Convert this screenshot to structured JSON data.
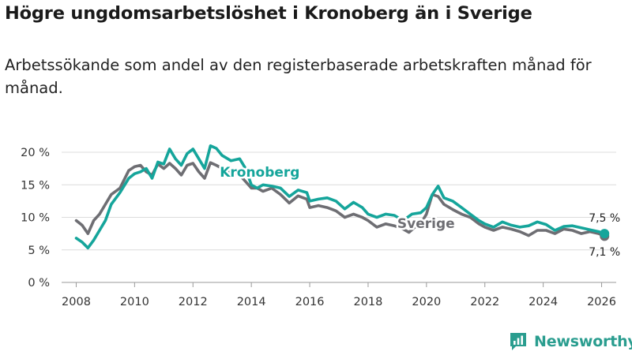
{
  "header": {
    "title": "Högre ungdomsarbetslöshet i Kronoberg än i Sverige",
    "subtitle": "Arbetssökande som andel av den registerbaserade arbetskraften månad för månad."
  },
  "brand": {
    "name": "Newsworthy",
    "icon": "newsworthy-logo-icon",
    "color": "#2a9d8f"
  },
  "colors": {
    "kronoberg": "#15a59b",
    "sverige": "#6e6e73",
    "grid": "#dcdcdc",
    "text": "#333333"
  },
  "chart_data": {
    "type": "line",
    "title": "Högre ungdomsarbetslöshet i Kronoberg än i Sverige",
    "subtitle": "Arbetssökande som andel av den registerbaserade arbetskraften månad för månad.",
    "xlabel": "",
    "ylabel": "",
    "xlim": [
      2007.5,
      2026.5
    ],
    "ylim": [
      0,
      20
    ],
    "grid": true,
    "legend": "inline labels",
    "y_ticks": [
      0,
      5,
      10,
      15,
      20
    ],
    "y_tick_labels": [
      "0 %",
      "5 %",
      "10 %",
      "15 %",
      "20 %"
    ],
    "x_ticks": [
      2008,
      2010,
      2012,
      2014,
      2016,
      2018,
      2020,
      2022,
      2024,
      2026
    ],
    "x_tick_labels": [
      "2008",
      "2010",
      "2012",
      "2014",
      "2016",
      "2018",
      "2020",
      "2022",
      "2024",
      "2026"
    ],
    "series": [
      {
        "name": "Kronoberg",
        "points": [
          [
            2008.0,
            6.8
          ],
          [
            2008.2,
            6.2
          ],
          [
            2008.4,
            5.3
          ],
          [
            2008.6,
            6.5
          ],
          [
            2008.8,
            8.0
          ],
          [
            2009.0,
            9.5
          ],
          [
            2009.2,
            12.0
          ],
          [
            2009.5,
            13.8
          ],
          [
            2009.8,
            16.0
          ],
          [
            2010.0,
            16.7
          ],
          [
            2010.2,
            17.0
          ],
          [
            2010.4,
            17.5
          ],
          [
            2010.6,
            16.0
          ],
          [
            2010.8,
            18.5
          ],
          [
            2011.0,
            18.2
          ],
          [
            2011.2,
            20.5
          ],
          [
            2011.4,
            19.0
          ],
          [
            2011.6,
            18.0
          ],
          [
            2011.8,
            19.8
          ],
          [
            2012.0,
            20.5
          ],
          [
            2012.2,
            19.0
          ],
          [
            2012.4,
            17.5
          ],
          [
            2012.6,
            21.0
          ],
          [
            2012.8,
            20.6
          ],
          [
            2013.0,
            19.5
          ],
          [
            2013.3,
            18.7
          ],
          [
            2013.6,
            19.0
          ],
          [
            2013.8,
            17.5
          ],
          [
            2014.0,
            15.0
          ],
          [
            2014.2,
            14.5
          ],
          [
            2014.4,
            15.0
          ],
          [
            2014.7,
            14.8
          ],
          [
            2015.0,
            14.5
          ],
          [
            2015.3,
            13.2
          ],
          [
            2015.6,
            14.2
          ],
          [
            2015.9,
            13.8
          ],
          [
            2016.0,
            12.5
          ],
          [
            2016.3,
            12.8
          ],
          [
            2016.6,
            13.0
          ],
          [
            2016.9,
            12.5
          ],
          [
            2017.2,
            11.3
          ],
          [
            2017.5,
            12.3
          ],
          [
            2017.8,
            11.5
          ],
          [
            2018.0,
            10.5
          ],
          [
            2018.3,
            10.0
          ],
          [
            2018.6,
            10.5
          ],
          [
            2018.9,
            10.3
          ],
          [
            2019.2,
            9.5
          ],
          [
            2019.5,
            10.5
          ],
          [
            2019.8,
            10.7
          ],
          [
            2020.0,
            11.5
          ],
          [
            2020.2,
            13.5
          ],
          [
            2020.4,
            14.8
          ],
          [
            2020.6,
            13.0
          ],
          [
            2020.9,
            12.5
          ],
          [
            2021.2,
            11.5
          ],
          [
            2021.5,
            10.5
          ],
          [
            2021.8,
            9.5
          ],
          [
            2022.0,
            9.0
          ],
          [
            2022.3,
            8.5
          ],
          [
            2022.6,
            9.3
          ],
          [
            2022.9,
            8.8
          ],
          [
            2023.2,
            8.5
          ],
          [
            2023.5,
            8.7
          ],
          [
            2023.8,
            9.3
          ],
          [
            2024.1,
            8.9
          ],
          [
            2024.4,
            8.0
          ],
          [
            2024.7,
            8.6
          ],
          [
            2025.0,
            8.7
          ],
          [
            2025.3,
            8.4
          ],
          [
            2025.6,
            8.1
          ],
          [
            2025.9,
            7.8
          ],
          [
            2026.1,
            7.5
          ]
        ],
        "end_label": "7,5 %"
      },
      {
        "name": "Sverige",
        "points": [
          [
            2008.0,
            9.5
          ],
          [
            2008.2,
            8.8
          ],
          [
            2008.4,
            7.5
          ],
          [
            2008.6,
            9.5
          ],
          [
            2008.8,
            10.5
          ],
          [
            2009.0,
            12.0
          ],
          [
            2009.2,
            13.5
          ],
          [
            2009.5,
            14.5
          ],
          [
            2009.8,
            17.2
          ],
          [
            2010.0,
            17.8
          ],
          [
            2010.2,
            18.0
          ],
          [
            2010.4,
            17.0
          ],
          [
            2010.6,
            16.5
          ],
          [
            2010.8,
            18.2
          ],
          [
            2011.0,
            17.5
          ],
          [
            2011.2,
            18.3
          ],
          [
            2011.4,
            17.5
          ],
          [
            2011.6,
            16.5
          ],
          [
            2011.8,
            18.0
          ],
          [
            2012.0,
            18.3
          ],
          [
            2012.2,
            17.0
          ],
          [
            2012.4,
            16.0
          ],
          [
            2012.6,
            18.4
          ],
          [
            2012.8,
            18.0
          ],
          [
            2013.0,
            17.5
          ],
          [
            2013.3,
            17.0
          ],
          [
            2013.6,
            16.5
          ],
          [
            2013.8,
            15.5
          ],
          [
            2014.0,
            14.5
          ],
          [
            2014.2,
            14.5
          ],
          [
            2014.4,
            14.0
          ],
          [
            2014.7,
            14.5
          ],
          [
            2015.0,
            13.5
          ],
          [
            2015.3,
            12.2
          ],
          [
            2015.6,
            13.3
          ],
          [
            2015.9,
            12.8
          ],
          [
            2016.0,
            11.5
          ],
          [
            2016.3,
            11.8
          ],
          [
            2016.6,
            11.5
          ],
          [
            2016.9,
            11.0
          ],
          [
            2017.2,
            10.0
          ],
          [
            2017.5,
            10.5
          ],
          [
            2017.8,
            10.0
          ],
          [
            2018.0,
            9.5
          ],
          [
            2018.3,
            8.5
          ],
          [
            2018.6,
            9.0
          ],
          [
            2018.9,
            8.7
          ],
          [
            2019.2,
            8.2
          ],
          [
            2019.4,
            7.7
          ],
          [
            2019.6,
            8.5
          ],
          [
            2019.8,
            9.0
          ],
          [
            2020.0,
            10.5
          ],
          [
            2020.2,
            13.5
          ],
          [
            2020.4,
            13.2
          ],
          [
            2020.6,
            12.0
          ],
          [
            2020.9,
            11.2
          ],
          [
            2021.2,
            10.5
          ],
          [
            2021.5,
            10.0
          ],
          [
            2021.8,
            9.0
          ],
          [
            2022.0,
            8.5
          ],
          [
            2022.3,
            8.0
          ],
          [
            2022.6,
            8.5
          ],
          [
            2022.9,
            8.2
          ],
          [
            2023.2,
            7.8
          ],
          [
            2023.5,
            7.2
          ],
          [
            2023.8,
            8.0
          ],
          [
            2024.1,
            8.0
          ],
          [
            2024.4,
            7.5
          ],
          [
            2024.7,
            8.2
          ],
          [
            2025.0,
            8.0
          ],
          [
            2025.3,
            7.5
          ],
          [
            2025.6,
            7.8
          ],
          [
            2025.9,
            7.5
          ],
          [
            2026.1,
            7.1
          ]
        ],
        "end_label": "7,1 %"
      }
    ]
  }
}
